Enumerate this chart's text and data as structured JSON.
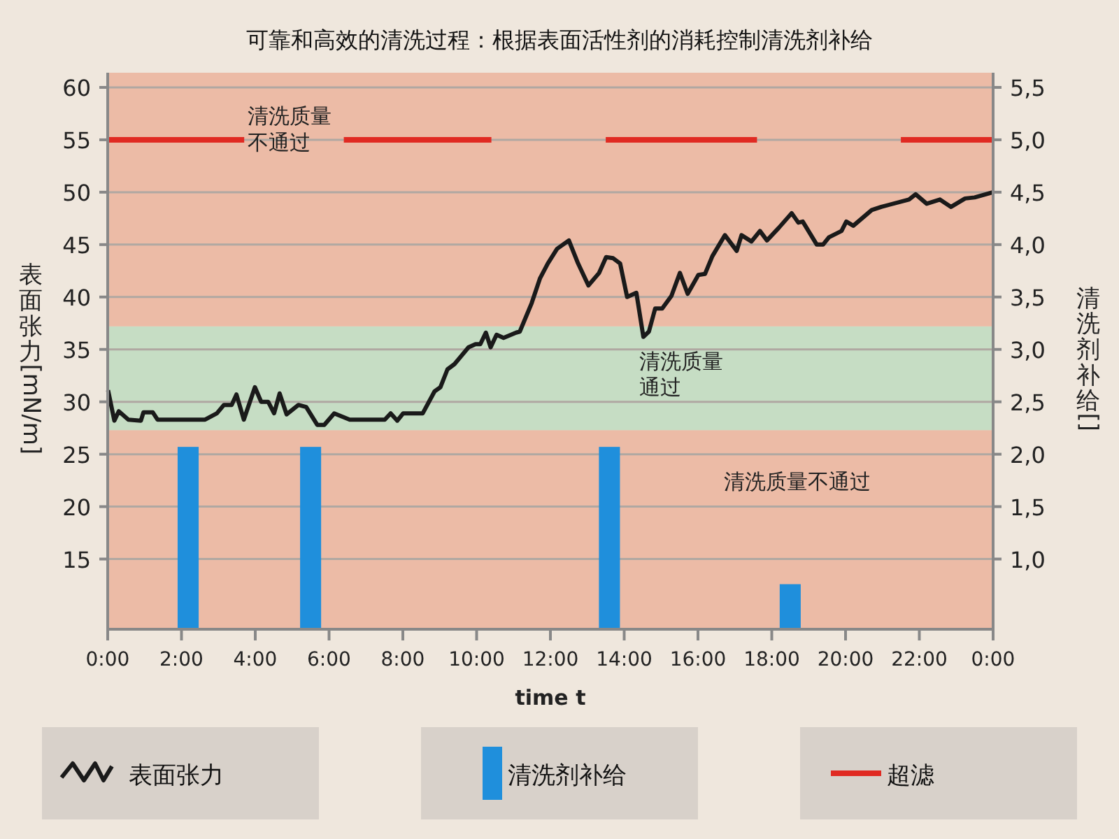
{
  "chart_data": {
    "type": "line",
    "title": "可靠和高效的清洗过程：根据表面活性剂的消耗控制清洗剂补给",
    "xlabel": "time t",
    "ylabel": "表面张力[mN/m]",
    "y2label": "清洗剂补给 []",
    "xlim": [
      0,
      24
    ],
    "xticks": [
      {
        "value": 0,
        "label": "0:00"
      },
      {
        "value": 2,
        "label": "2:00"
      },
      {
        "value": 4,
        "label": "4:00"
      },
      {
        "value": 6,
        "label": "6:00"
      },
      {
        "value": 8,
        "label": "8:00"
      },
      {
        "value": 10,
        "label": "10:00"
      },
      {
        "value": 12,
        "label": "12:00"
      },
      {
        "value": 14,
        "label": "14:00"
      },
      {
        "value": 16,
        "label": "16:00"
      },
      {
        "value": 18,
        "label": "18:00"
      },
      {
        "value": 20,
        "label": "20:00"
      },
      {
        "value": 22,
        "label": "22:00"
      },
      {
        "value": 24,
        "label": "0:00"
      }
    ],
    "ylim": [
      8.3,
      61.4
    ],
    "yticks": [
      15,
      20,
      25,
      30,
      35,
      40,
      45,
      50,
      55,
      60
    ],
    "y2lim": [
      0.33,
      5.64
    ],
    "y2ticks": [
      {
        "value": 1,
        "label": "1,0"
      },
      {
        "value": 1.5,
        "label": "1,5"
      },
      {
        "value": 2,
        "label": "2,0"
      },
      {
        "value": 2.5,
        "label": "2,5"
      },
      {
        "value": 3,
        "label": "3,0"
      },
      {
        "value": 3.5,
        "label": "3,5"
      },
      {
        "value": 4,
        "label": "4,0"
      },
      {
        "value": 4.5,
        "label": "4,5"
      },
      {
        "value": 5,
        "label": "5,0"
      },
      {
        "value": 5.5,
        "label": "5,5"
      }
    ],
    "grid": "y",
    "legend": "bottom",
    "bands": [
      {
        "axis": "y",
        "from": 8.3,
        "to": 27.3,
        "label": "清洗质量不通过",
        "color": "#ecbba6"
      },
      {
        "axis": "y",
        "from": 27.3,
        "to": 37.2,
        "label": "清洗质量通过",
        "color": "#c6ddc4"
      },
      {
        "axis": "y",
        "from": 37.2,
        "to": 61.4,
        "label": "清洗质量不通过",
        "color": "#ecbba6"
      }
    ],
    "series": [
      {
        "name": "表面张力",
        "color": "#1a1a1a",
        "x": [
          0.01,
          0.18,
          0.3,
          0.56,
          0.9,
          0.97,
          1.22,
          1.35,
          2.64,
          2.96,
          3.15,
          3.36,
          3.49,
          3.69,
          3.99,
          4.16,
          4.35,
          4.51,
          4.66,
          4.85,
          5.17,
          5.38,
          5.68,
          5.87,
          6.14,
          6.56,
          7.51,
          7.67,
          7.85,
          8.01,
          8.54,
          8.86,
          9.02,
          9.21,
          9.4,
          9.78,
          9.97,
          10.1,
          10.25,
          10.38,
          10.54,
          10.73,
          11.07,
          11.17,
          11.49,
          11.72,
          11.93,
          12.18,
          12.5,
          12.75,
          13.03,
          13.32,
          13.51,
          13.7,
          13.89,
          14.08,
          14.33,
          14.52,
          14.67,
          14.84,
          15.03,
          15.28,
          15.51,
          15.72,
          16.01,
          16.19,
          16.39,
          16.73,
          17.05,
          17.18,
          17.45,
          17.68,
          17.87,
          18.19,
          18.54,
          18.72,
          18.84,
          19.22,
          19.39,
          19.55,
          19.89,
          20.02,
          20.21,
          20.71,
          20.97,
          21.72,
          21.9,
          22.2,
          22.56,
          22.86,
          23.24,
          23.5,
          24
        ],
        "values": [
          31.1,
          28.2,
          29.1,
          28.3,
          28.2,
          29.0,
          29.0,
          28.3,
          28.3,
          28.9,
          29.7,
          29.7,
          30.7,
          28.3,
          31.4,
          30.0,
          30.0,
          28.9,
          30.8,
          28.8,
          29.7,
          29.5,
          27.8,
          27.8,
          28.9,
          28.3,
          28.3,
          28.9,
          28.2,
          28.9,
          28.9,
          31.0,
          31.4,
          33.1,
          33.6,
          35.2,
          35.5,
          35.5,
          36.6,
          35.2,
          36.4,
          36.1,
          36.6,
          36.7,
          39.4,
          41.8,
          43.2,
          44.6,
          45.4,
          43.2,
          41.1,
          42.3,
          43.8,
          43.7,
          43.2,
          40.0,
          40.4,
          36.2,
          36.7,
          38.9,
          38.9,
          40.1,
          42.3,
          40.3,
          42.1,
          42.2,
          43.9,
          45.9,
          44.4,
          45.9,
          45.3,
          46.3,
          45.4,
          46.6,
          48.0,
          47.1,
          47.2,
          45.0,
          45.0,
          45.7,
          46.3,
          47.2,
          46.8,
          48.3,
          48.6,
          49.3,
          49.8,
          48.9,
          49.3,
          48.6,
          49.4,
          49.5,
          50.0
        ]
      },
      {
        "name": "清洗剂补给",
        "type": "bar",
        "axis": "y2",
        "color": "#1f8fdc",
        "x": [
          2.18,
          5.5,
          13.6,
          18.5
        ],
        "values": [
          2.07,
          2.07,
          2.07,
          0.76
        ]
      },
      {
        "name": "超滤",
        "type": "line",
        "color": "#e02a22",
        "x": [
          0,
          3.7
        ],
        "values": [
          55,
          55
        ]
      },
      {
        "type": "line",
        "color": "#e02a22",
        "x": [
          6.4,
          10.4
        ],
        "values": [
          55,
          55
        ]
      },
      {
        "type": "line",
        "color": "#e02a22",
        "x": [
          13.5,
          17.6
        ],
        "values": [
          55,
          55
        ]
      },
      {
        "type": "line",
        "color": "#e02a22",
        "x": [
          21.5,
          24
        ],
        "values": [
          55,
          55
        ]
      }
    ]
  }
}
